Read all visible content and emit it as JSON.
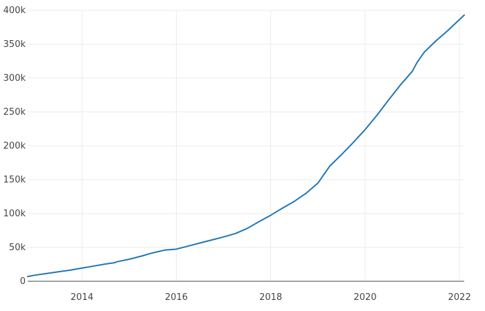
{
  "chart_data": {
    "type": "line",
    "title": "",
    "xlabel": "",
    "ylabel": "",
    "xlim": [
      2012.85,
      2022.1
    ],
    "ylim": [
      0,
      400000
    ],
    "grid": true,
    "legend": "none",
    "x_ticks": [
      {
        "value": 2014,
        "label": "2014"
      },
      {
        "value": 2016,
        "label": "2016"
      },
      {
        "value": 2018,
        "label": "2018"
      },
      {
        "value": 2020,
        "label": "2020"
      },
      {
        "value": 2022,
        "label": "2022"
      }
    ],
    "y_ticks": [
      {
        "value": 0,
        "label": "0"
      },
      {
        "value": 50000,
        "label": "50k"
      },
      {
        "value": 100000,
        "label": "100k"
      },
      {
        "value": 150000,
        "label": "150k"
      },
      {
        "value": 200000,
        "label": "200k"
      },
      {
        "value": 250000,
        "label": "250k"
      },
      {
        "value": 300000,
        "label": "300k"
      },
      {
        "value": 350000,
        "label": "350k"
      },
      {
        "value": 400000,
        "label": "400k"
      }
    ],
    "series": [
      {
        "color": "#1f77b4",
        "x": [
          2012.85,
          2013.0,
          2013.25,
          2013.5,
          2013.75,
          2014.0,
          2014.25,
          2014.5,
          2014.7,
          2014.72,
          2015.0,
          2015.25,
          2015.5,
          2015.75,
          2016.0,
          2016.25,
          2016.5,
          2016.75,
          2017.0,
          2017.25,
          2017.5,
          2017.75,
          2018.0,
          2018.25,
          2018.5,
          2018.75,
          2019.0,
          2019.25,
          2019.5,
          2019.75,
          2020.0,
          2020.25,
          2020.5,
          2020.75,
          2021.0,
          2021.1,
          2021.25,
          2021.5,
          2021.75,
          2021.9,
          2022.1
        ],
        "y": [
          7000,
          9000,
          11500,
          14000,
          16500,
          19500,
          22500,
          25500,
          27500,
          28500,
          32500,
          37000,
          42000,
          46000,
          47500,
          52000,
          56500,
          61000,
          65500,
          70500,
          78000,
          88000,
          97500,
          108000,
          118000,
          130000,
          145000,
          170000,
          187000,
          205000,
          224000,
          245000,
          268000,
          290000,
          310000,
          323000,
          338000,
          355000,
          370000,
          380000,
          393000
        ]
      }
    ]
  }
}
